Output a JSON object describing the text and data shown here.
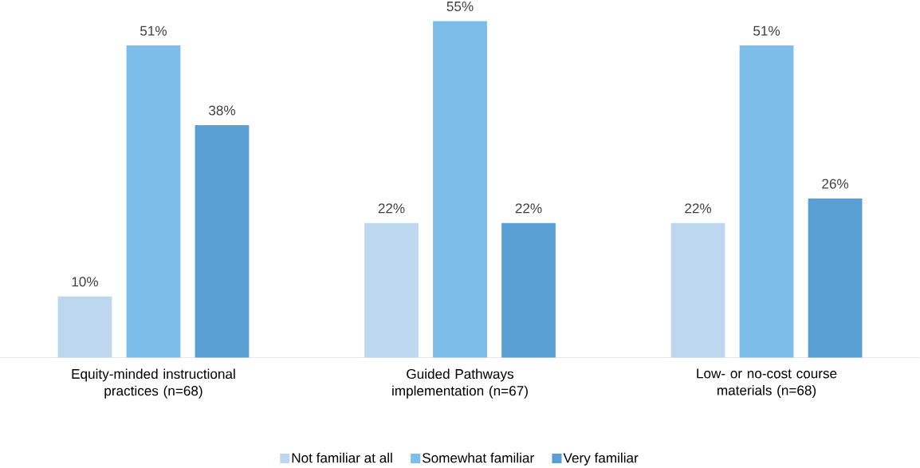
{
  "chart_data": {
    "type": "bar",
    "categories": [
      "Equity-minded instructional practices (n=68)",
      "Guided Pathways implementation (n=67)",
      "Low- or no-cost course materials (n=68)"
    ],
    "series": [
      {
        "name": "Not familiar at all",
        "color": "#bdd7ee",
        "values": [
          10,
          22,
          22
        ],
        "value_labels": [
          "10%",
          "22%",
          "22%"
        ]
      },
      {
        "name": "Somewhat familiar",
        "color": "#7cbde9",
        "values": [
          51,
          55,
          51
        ],
        "value_labels": [
          "51%",
          "55%",
          "51%"
        ]
      },
      {
        "name": "Very familiar",
        "color": "#5a9fd4",
        "values": [
          38,
          22,
          26
        ],
        "value_labels": [
          "38%",
          "22%",
          "26%"
        ]
      }
    ],
    "legend": "bottom"
  }
}
